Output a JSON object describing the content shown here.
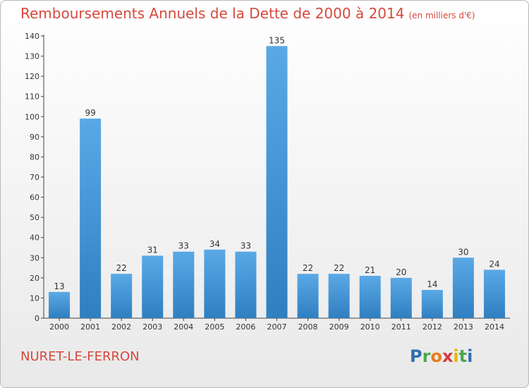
{
  "title": "Remboursements Annuels de la Dette de 2000 à 2014",
  "unit": "(en milliers d'€)",
  "place": "NURET-LE-FERRON",
  "logo": "Proxiti",
  "colors": {
    "title": "#d6493d",
    "bar_light": "#5aa9e6",
    "bar_dark": "#2f7fc1"
  },
  "chart_data": {
    "type": "bar",
    "title": "Remboursements Annuels de la Dette de 2000 à 2014",
    "categories": [
      "2000",
      "2001",
      "2002",
      "2003",
      "2004",
      "2005",
      "2006",
      "2007",
      "2008",
      "2009",
      "2010",
      "2011",
      "2012",
      "2013",
      "2014"
    ],
    "values": [
      13,
      99,
      22,
      31,
      33,
      34,
      33,
      135,
      22,
      22,
      21,
      20,
      14,
      30,
      24
    ],
    "ylim": [
      0,
      140
    ],
    "yticks": [
      0,
      10,
      20,
      30,
      40,
      50,
      60,
      70,
      80,
      90,
      100,
      110,
      120,
      130,
      140
    ],
    "grid": false,
    "xlabel": "",
    "ylabel": ""
  }
}
